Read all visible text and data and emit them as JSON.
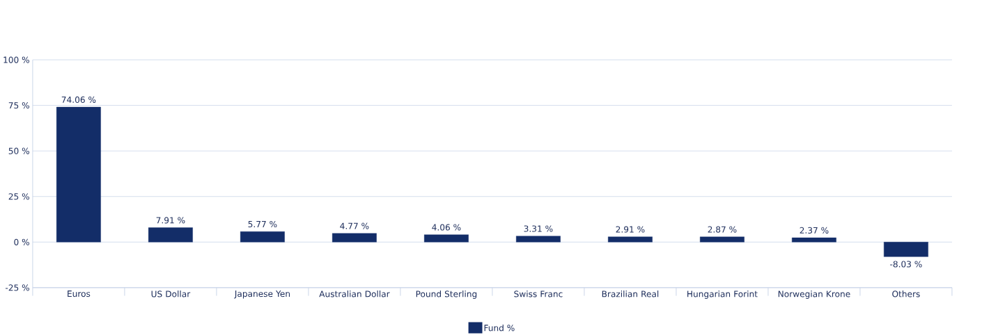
{
  "chart_data": {
    "type": "bar",
    "categories": [
      "Euros",
      "US Dollar",
      "Japanese Yen",
      "Australian Dollar",
      "Pound Sterling",
      "Swiss Franc",
      "Brazilian Real",
      "Hungarian Forint",
      "Norwegian Krone",
      "Others"
    ],
    "series": [
      {
        "name": "Fund %",
        "color": "#132d68",
        "values": [
          74.06,
          7.91,
          5.77,
          4.77,
          4.06,
          3.31,
          2.91,
          2.87,
          2.37,
          -8.03
        ],
        "value_labels": [
          "74.06 %",
          "7.91 %",
          "5.77 %",
          "4.77 %",
          "4.06 %",
          "3.31 %",
          "2.91 %",
          "2.87 %",
          "2.37 %",
          "-8.03 %"
        ]
      }
    ],
    "ylim": [
      -25,
      100
    ],
    "yticks": [
      {
        "value": -25,
        "label": "-25 %"
      },
      {
        "value": 0,
        "label": "0 %"
      },
      {
        "value": 25,
        "label": "25 %"
      },
      {
        "value": 50,
        "label": "50 %"
      },
      {
        "value": 75,
        "label": "75 %"
      },
      {
        "value": 100,
        "label": "100 %"
      }
    ],
    "grid": "y",
    "legend": "bottom"
  }
}
